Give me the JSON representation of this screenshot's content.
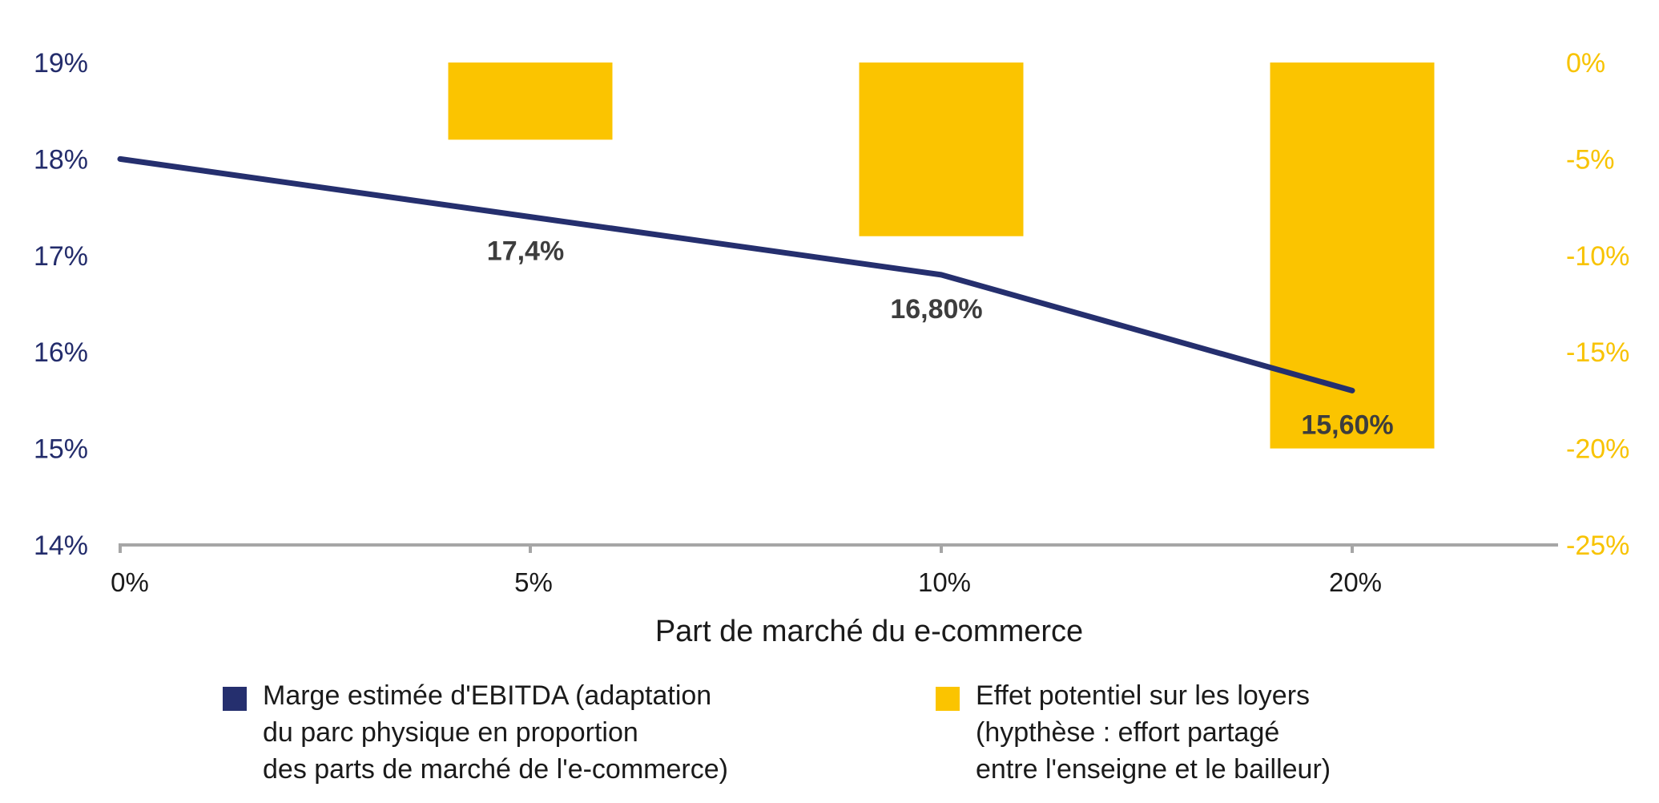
{
  "chart_data": {
    "type": "bar",
    "categories": [
      "0%",
      "5%",
      "10%",
      "20%"
    ],
    "xlabel": "Part de marché du e-commerce",
    "y_left": {
      "ylim": [
        14,
        19
      ],
      "ticks": [
        "14%",
        "15%",
        "16%",
        "17%",
        "18%",
        "19%"
      ]
    },
    "y_right": {
      "ylim": [
        -25,
        0
      ],
      "ticks": [
        "-25%",
        "-20%",
        "-15%",
        "-10%",
        "-5%",
        "0%"
      ]
    },
    "series": [
      {
        "name": "Marge estimée d'EBITDA (adaptation du parc physique en proportion des parts de marché de l'e-commerce)",
        "type": "line",
        "axis": "left",
        "values": [
          18.0,
          17.4,
          16.8,
          15.6
        ],
        "labels": [
          "",
          "17,4%",
          "16,80%",
          "15,60%"
        ],
        "color": "#252f6e"
      },
      {
        "name": "Effet potentiel sur les loyers (hypthèse : effort partagé entre l'enseigne et le bailleur)",
        "type": "bar",
        "axis": "right",
        "values": [
          null,
          -4,
          -9,
          -20
        ],
        "color": "#fbc400"
      }
    ],
    "grid": false,
    "legend_position": "bottom"
  },
  "legend": {
    "line_text": "Marge estimée d'EBITDA (adaptation\ndu parc physique en proportion\ndes parts de marché de l'e-commerce)",
    "bar_text": "Effet potentiel sur les loyers\n(hypthèse : effort partagé\nentre l'enseigne et le bailleur)"
  }
}
